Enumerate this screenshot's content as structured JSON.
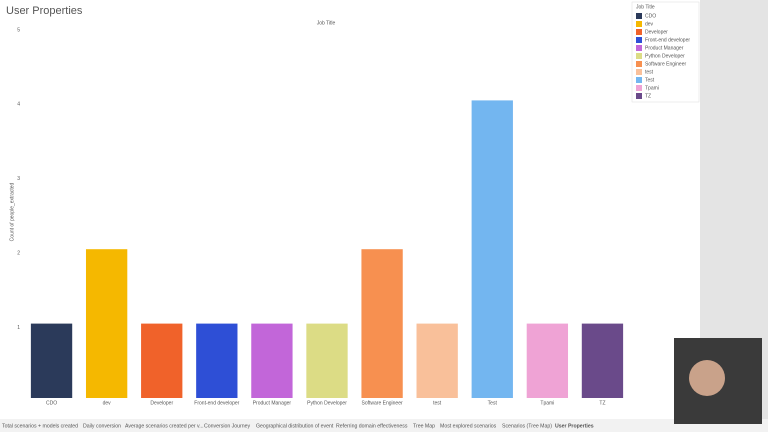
{
  "chart_data": {
    "type": "bar",
    "title": "User Properties",
    "x_label": "Job Title",
    "y_label": "Count of people_extracted",
    "categories": [
      "CDO",
      "dev",
      "Developer",
      "Front-end developer",
      "Product Manager",
      "Python Developer",
      "Software Engineer",
      "test",
      "Test",
      "Tpami",
      "TZ"
    ],
    "values": [
      1,
      2,
      1,
      1,
      1,
      1,
      2,
      1,
      4,
      1,
      1
    ],
    "colors": [
      "#2b3a5a",
      "#f5b800",
      "#f0622a",
      "#2e4fd6",
      "#c266d9",
      "#dcdc85",
      "#f79050",
      "#f9c09a",
      "#73b6f0",
      "#efa3d5",
      "#6a4a8a"
    ],
    "ylim": [
      0,
      5
    ],
    "yticks": [
      1,
      2,
      3,
      4,
      5
    ],
    "grid": false
  },
  "tabs": [
    "Total scenarios + models created",
    "Daily conversion",
    "Average scenarios created per v...",
    "Conversion Journey",
    "Geographical distribution of event",
    "Referring domain effectiveness",
    "Tree Map",
    "Most explored scenarios",
    "Scenarios (Tree Map)",
    "User Properties"
  ],
  "active_tab": 9
}
